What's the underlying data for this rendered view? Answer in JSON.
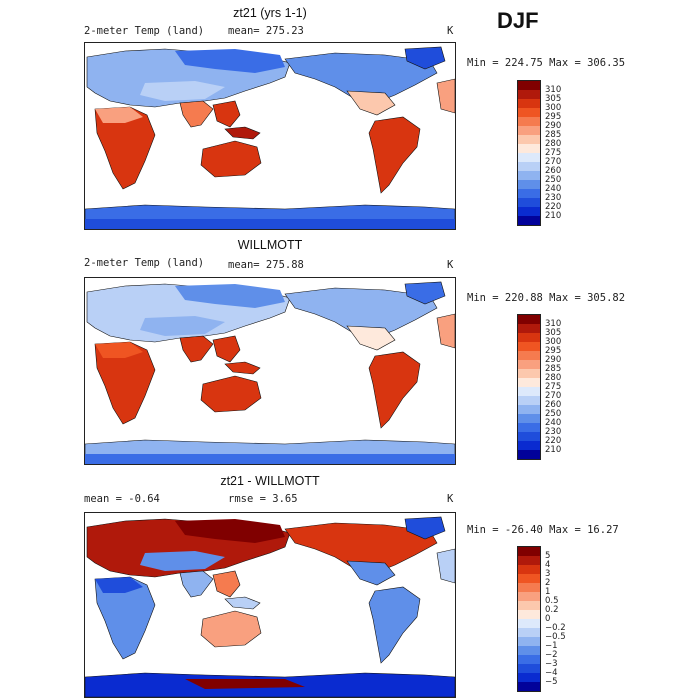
{
  "season": "DJF",
  "chart_data": [
    {
      "type": "heatmap",
      "title": "zt21 (yrs 1-1)",
      "variable": "2-meter Temp (land)",
      "mean_label": "mean= 275.23",
      "units": "K",
      "range_label": "Min = 224.75 Max = 306.35",
      "colorbar_ticks": [
        "310",
        "305",
        "300",
        "295",
        "290",
        "285",
        "280",
        "275",
        "270",
        "260",
        "250",
        "240",
        "230",
        "220",
        "210"
      ],
      "colors": [
        "#800000",
        "#b0190b",
        "#d83510",
        "#ef5522",
        "#f57b4f",
        "#f9a07f",
        "#fcc8ad",
        "#fee9dc",
        "#dde9fb",
        "#b9d0f6",
        "#8fb3f0",
        "#5f8fe9",
        "#3a6de6",
        "#1f4ddb",
        "#0a2bd0",
        "#02029a"
      ]
    },
    {
      "type": "heatmap",
      "title": "WILLMOTT",
      "variable": "2-meter Temp (land)",
      "mean_label": "mean= 275.88",
      "units": "K",
      "range_label": "Min = 220.88 Max = 305.82",
      "colorbar_ticks": [
        "310",
        "305",
        "300",
        "295",
        "290",
        "285",
        "280",
        "275",
        "270",
        "260",
        "250",
        "240",
        "230",
        "220",
        "210"
      ],
      "colors": [
        "#800000",
        "#b0190b",
        "#d83510",
        "#ef5522",
        "#f57b4f",
        "#f9a07f",
        "#fcc8ad",
        "#fee9dc",
        "#dde9fb",
        "#b9d0f6",
        "#8fb3f0",
        "#5f8fe9",
        "#3a6de6",
        "#1f4ddb",
        "#0a2bd0",
        "#02029a"
      ]
    },
    {
      "type": "heatmap",
      "title": "zt21 - WILLMOTT",
      "mean_label": "mean =   -0.64",
      "rmse_label": "rmse =    3.65",
      "units": "K",
      "range_label": "Min = -26.40 Max =  16.27",
      "colorbar_ticks": [
        "5",
        "4",
        "3",
        "2",
        "1",
        "0.5",
        "0.2",
        "0",
        "−0.2",
        "−0.5",
        "−1",
        "−2",
        "−3",
        "−4",
        "−5"
      ],
      "colors": [
        "#800000",
        "#b0190b",
        "#d83510",
        "#ef5522",
        "#f57b4f",
        "#f9a07f",
        "#fcc8ad",
        "#fee9dc",
        "#dde9fb",
        "#b9d0f6",
        "#8fb3f0",
        "#5f8fe9",
        "#3a6de6",
        "#1f4ddb",
        "#0a2bd0",
        "#02029a"
      ]
    }
  ]
}
